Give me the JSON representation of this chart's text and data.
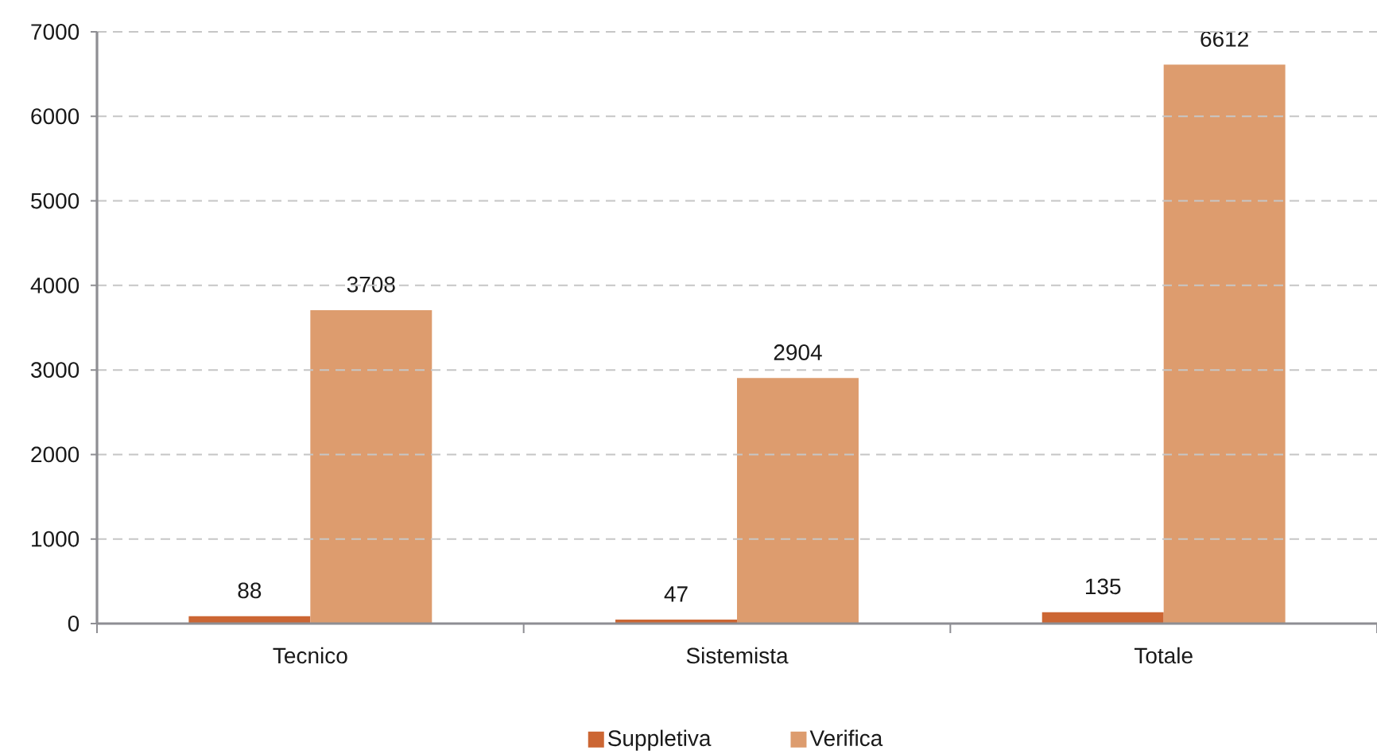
{
  "chart_data": {
    "type": "bar",
    "categories": [
      "Tecnico",
      "Sistemista",
      "Totale"
    ],
    "series": [
      {
        "name": "Suppletiva",
        "color": "#cc6633",
        "values": [
          88,
          47,
          135
        ]
      },
      {
        "name": "Verifica",
        "color": "#dd9c6e",
        "values": [
          3708,
          2904,
          6612
        ]
      }
    ],
    "ylim": [
      0,
      7000
    ],
    "yticks": [
      0,
      1000,
      2000,
      3000,
      4000,
      5000,
      6000,
      7000
    ],
    "grid": "y",
    "legend": "bottom",
    "data_labels": true
  }
}
